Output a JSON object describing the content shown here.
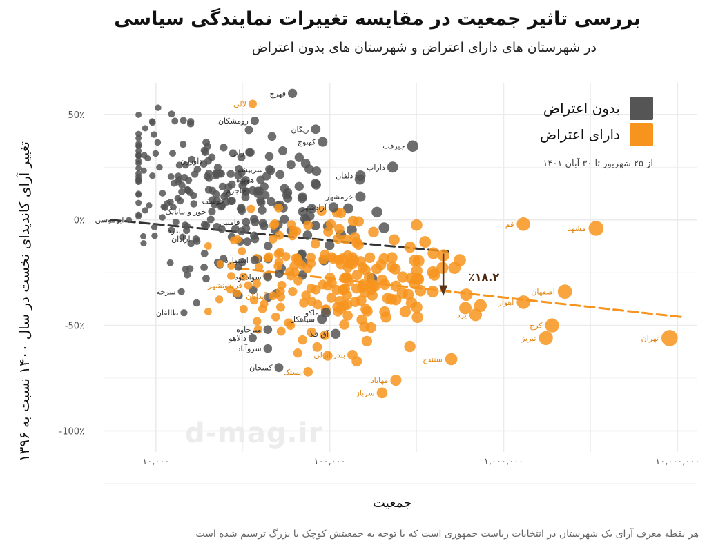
{
  "title": "بررسی تاثیر جمعیت در مقایسه تغییرات نمایندگی سیاسی",
  "subtitle": "در شهرستان های دارای اعتراض و شهرستان های بدون اعتراض",
  "caption": "هر نقطه معرف آرای یک شهرستان در انتخابات ریاست جمهوری است که با توجه به جمعیتش کوچک یا بزرگ ترسیم شده است",
  "watermark": "d-mag.ir",
  "legend_note": "از ۲۵ شهریور تا ۳۰ آبان ۱۴۰۱",
  "annotation": "٪۱۸.۲",
  "colors": {
    "no_protest": "#555555",
    "protest": "#f7941d",
    "grid": "#ebebeb",
    "arrow": "#5a3519"
  },
  "chart_data": {
    "type": "scatter",
    "xlabel": "جمعیت",
    "ylabel": "تغییر آرای کاندیدای نخست در سال ۱۴۰۰ نسبت به ۱۳۹۶",
    "x_scale": "log",
    "xlim": [
      5000,
      13000000
    ],
    "ylim": [
      -110,
      65
    ],
    "x_ticks": [
      10000,
      100000,
      1000000,
      10000000
    ],
    "x_tick_labels": [
      "۱۰,۰۰۰",
      "۱۰۰,۰۰۰",
      "۱,۰۰۰,۰۰۰",
      "۱۰,۰۰۰,۰۰۰"
    ],
    "y_ticks": [
      50,
      0,
      -50,
      -100
    ],
    "y_tick_labels": [
      "50٪",
      "0٪",
      "-50٪",
      "-100٪"
    ],
    "legend_position": "top-right",
    "series": [
      {
        "name": "بدون اعتراض",
        "color": "#555555",
        "trend": {
          "x": [
            5500,
            480000
          ],
          "y": [
            0,
            -15
          ]
        },
        "labeled_points": [
          {
            "label": "فهرج",
            "x": 61000,
            "y": 60
          },
          {
            "label": "رومشکان",
            "x": 37000,
            "y": 47
          },
          {
            "label": "ریگان",
            "x": 83000,
            "y": 43
          },
          {
            "label": "کهنوج",
            "x": 91000,
            "y": 37
          },
          {
            "label": "جیرفت",
            "x": 300000,
            "y": 35
          },
          {
            "label": "رابر",
            "x": 35000,
            "y": 32
          },
          {
            "label": "داورزن",
            "x": 20000,
            "y": 28
          },
          {
            "label": "سربیشه",
            "x": 45000,
            "y": 24
          },
          {
            "label": "دلفان",
            "x": 150000,
            "y": 21
          },
          {
            "label": "داراب",
            "x": 230000,
            "y": 25
          },
          {
            "label": "هویزه",
            "x": 40000,
            "y": 19
          },
          {
            "label": "جاجرم",
            "x": 36000,
            "y": 14
          },
          {
            "label": "خوسف",
            "x": 27000,
            "y": 9
          },
          {
            "label": "خرمشهر",
            "x": 150000,
            "y": 11
          },
          {
            "label": "آزادشهر",
            "x": 105000,
            "y": 6
          },
          {
            "label": "خور و بیابانک",
            "x": 21000,
            "y": 4
          },
          {
            "label": "ابوموسی",
            "x": 7000,
            "y": 0
          },
          {
            "label": "فامنین",
            "x": 33000,
            "y": -1
          },
          {
            "label": "بدره",
            "x": 15000,
            "y": -5
          },
          {
            "label": "آرادان",
            "x": 17000,
            "y": -9
          },
          {
            "label": "اشتهارد",
            "x": 37000,
            "y": -19
          },
          {
            "label": "سوادکوه",
            "x": 44000,
            "y": -27
          },
          {
            "label": "سرخه",
            "x": 14000,
            "y": -34
          },
          {
            "label": "طالقان",
            "x": 14500,
            "y": -44
          },
          {
            "label": "ماکو",
            "x": 95000,
            "y": -44
          },
          {
            "label": "سیاهکل",
            "x": 90000,
            "y": -47
          },
          {
            "label": "میرجاوه",
            "x": 44000,
            "y": -52
          },
          {
            "label": "دالاهو",
            "x": 36000,
            "y": -56
          },
          {
            "label": "آق قلا",
            "x": 108000,
            "y": -54
          },
          {
            "label": "سروآباد",
            "x": 44000,
            "y": -61
          },
          {
            "label": "کمیجان",
            "x": 51000,
            "y": -70
          }
        ]
      },
      {
        "name": "دارای اعتراض",
        "color": "#f7941d",
        "trend": {
          "x": [
            30000,
            10500000
          ],
          "y": [
            -23,
            -46
          ]
        },
        "labeled_points": [
          {
            "label": "لالی",
            "x": 36000,
            "y": 55
          },
          {
            "label": "قم",
            "x": 1300000,
            "y": -2
          },
          {
            "label": "مشهد",
            "x": 3400000,
            "y": -4
          },
          {
            "label": "فریدونشهر",
            "x": 34000,
            "y": -31
          },
          {
            "label": "آبدانان",
            "x": 47000,
            "y": -36
          },
          {
            "label": "اصفهان",
            "x": 2250000,
            "y": -34
          },
          {
            "label": "اهواز",
            "x": 1300000,
            "y": -39
          },
          {
            "label": "یزد",
            "x": 690000,
            "y": -45
          },
          {
            "label": "کرج",
            "x": 1900000,
            "y": -50
          },
          {
            "label": "تبریز",
            "x": 1750000,
            "y": -56
          },
          {
            "label": "تهران",
            "x": 9000000,
            "y": -56
          },
          {
            "label": "سنندج",
            "x": 500000,
            "y": -66
          },
          {
            "label": "بندر انزلی",
            "x": 135000,
            "y": -64
          },
          {
            "label": "بستک",
            "x": 75000,
            "y": -72
          },
          {
            "label": "سرباز",
            "x": 200000,
            "y": -82
          },
          {
            "label": "مهاباد",
            "x": 240000,
            "y": -76
          }
        ]
      }
    ]
  }
}
